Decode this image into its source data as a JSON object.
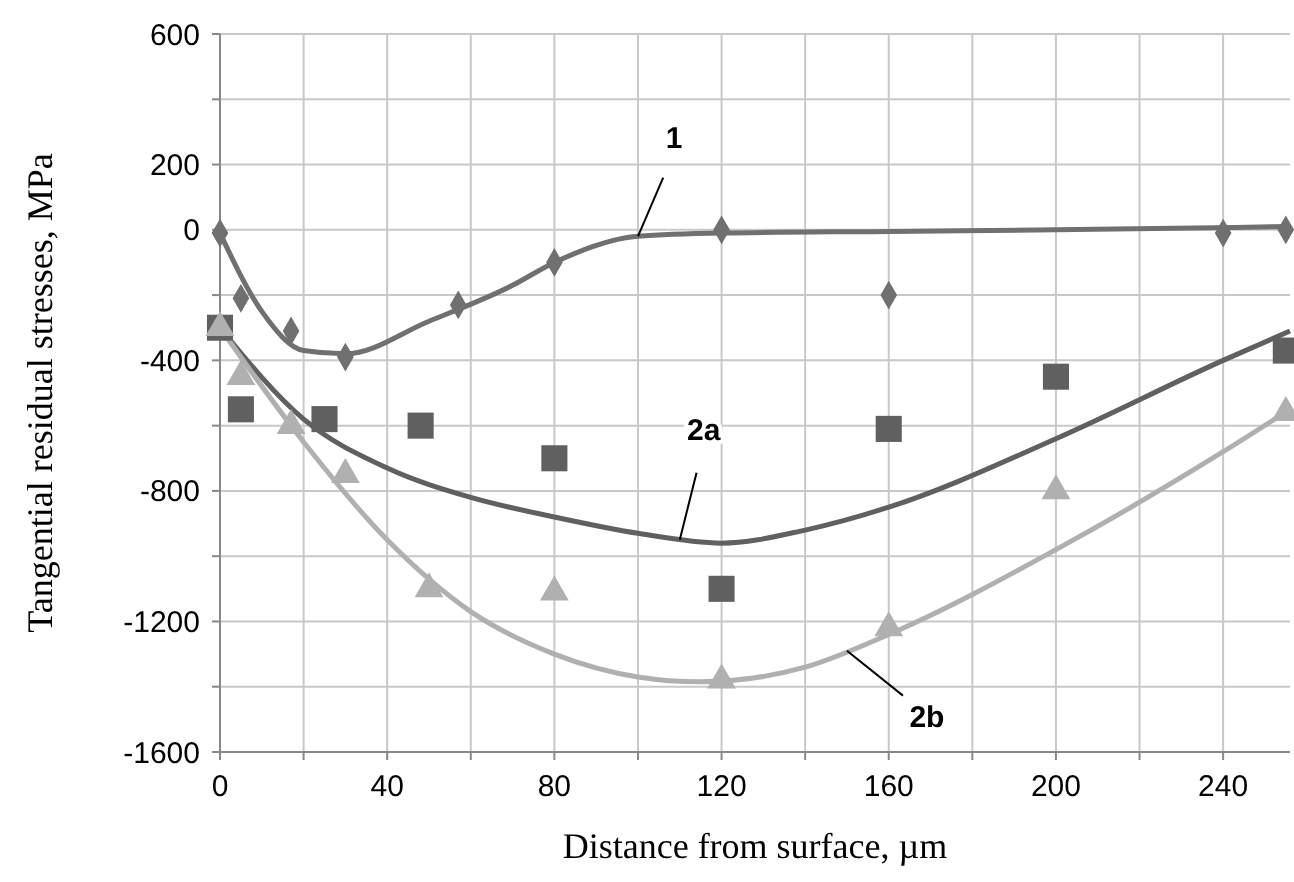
{
  "chart_data": {
    "type": "scatter",
    "xlabel": "Distance from surface, µm",
    "ylabel": "Tangential residual stresses, MPa",
    "xlim": [
      0,
      256
    ],
    "ylim": [
      -1600,
      600
    ],
    "xticks": [
      0,
      {
        "value": 20,
        "label": null
      },
      40,
      {
        "value": 60,
        "label": null
      },
      80,
      {
        "value": 100,
        "label": null
      },
      120,
      {
        "value": 140,
        "label": null
      },
      160,
      {
        "value": 180,
        "label": null
      },
      200,
      {
        "value": 220,
        "label": null
      },
      240
    ],
    "yticks": [
      -1600,
      {
        "value": -1400,
        "label": null
      },
      -1200,
      {
        "value": -1000,
        "label": null
      },
      -800,
      {
        "value": -600,
        "label": null
      },
      -400,
      {
        "value": -200,
        "label": null
      },
      0,
      200,
      {
        "value": 400,
        "label": null
      },
      600
    ],
    "grid": true,
    "series": [
      {
        "type": "line",
        "color": "#707070",
        "marker": "none",
        "x": [
          0,
          10,
          20,
          30,
          50,
          70,
          80,
          100,
          120,
          160,
          200,
          256
        ],
        "values": [
          -10,
          -250,
          -370,
          -380,
          -280,
          -170,
          -100,
          -20,
          -10,
          -5,
          0,
          10
        ]
      },
      {
        "type": "line",
        "color": "#606060",
        "marker": "none",
        "x": [
          0,
          20,
          40,
          60,
          80,
          100,
          120,
          140,
          160,
          200,
          240,
          256
        ],
        "values": [
          -300,
          -580,
          -730,
          -820,
          -880,
          -930,
          -960,
          -920,
          -850,
          -640,
          -400,
          -310
        ]
      },
      {
        "type": "line",
        "color": "#b0b0b0",
        "marker": "none",
        "x": [
          0,
          20,
          40,
          60,
          80,
          100,
          115,
          140,
          160,
          200,
          240,
          256
        ],
        "values": [
          -300,
          -650,
          -950,
          -1170,
          -1300,
          -1370,
          -1385,
          -1340,
          -1240,
          -980,
          -680,
          -550
        ]
      },
      {
        "color": "#707070",
        "marker": "diamond",
        "x": [
          0,
          5,
          17,
          30,
          57,
          80,
          120,
          160,
          240,
          255
        ],
        "values": [
          -10,
          -210,
          -310,
          -390,
          -230,
          -100,
          0,
          -200,
          -10,
          0
        ]
      },
      {
        "color": "#606060",
        "marker": "square",
        "x": [
          0,
          5,
          25,
          48,
          80,
          120,
          160,
          200,
          255
        ],
        "values": [
          -300,
          -550,
          -580,
          -600,
          -700,
          -1100,
          -610,
          -450,
          -370
        ]
      },
      {
        "color": "#b0b0b0",
        "marker": "triangle",
        "x": [
          0,
          5,
          17,
          30,
          50,
          80,
          120,
          160,
          200,
          255
        ],
        "values": [
          -300,
          -450,
          -600,
          -750,
          -1100,
          -1110,
          -1380,
          -1220,
          -800,
          -560
        ]
      }
    ],
    "annotations": [
      {
        "text": "1",
        "x": 100,
        "y": -20
      },
      {
        "text": "2a",
        "x": 110,
        "y": -950
      },
      {
        "text": "2b",
        "x": 150,
        "y": -1290
      }
    ]
  }
}
